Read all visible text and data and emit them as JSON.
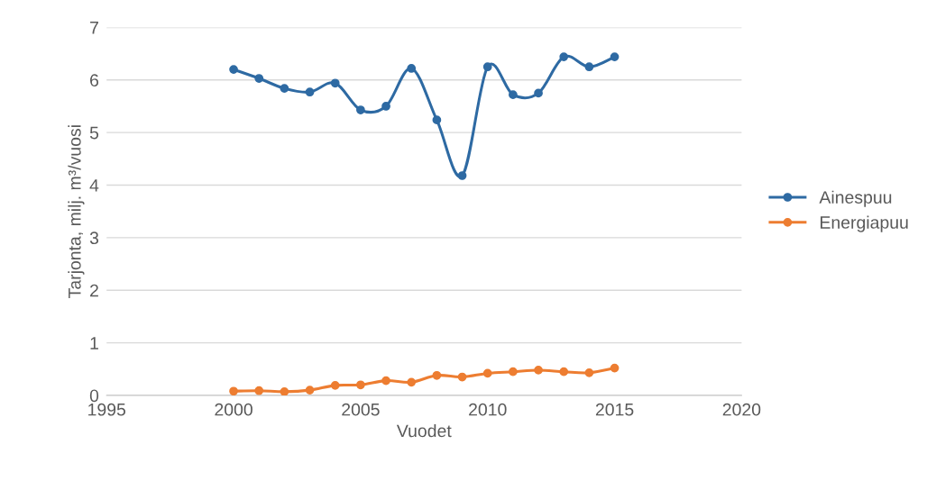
{
  "chart_data": {
    "type": "line",
    "xlabel": "Vuodet",
    "ylabel": "Tarjonta, milj. m³/vuosi",
    "x": [
      2000,
      2001,
      2002,
      2003,
      2004,
      2005,
      2006,
      2007,
      2008,
      2009,
      2010,
      2011,
      2012,
      2013,
      2014,
      2015
    ],
    "series": [
      {
        "name": "Ainespuu",
        "color": "#2e6aa3",
        "values": [
          6.2,
          6.03,
          5.84,
          5.77,
          5.94,
          5.43,
          5.5,
          6.22,
          5.24,
          4.18,
          6.25,
          5.72,
          5.75,
          6.44,
          6.25,
          6.44
        ]
      },
      {
        "name": "Energiapuu",
        "color": "#ed7d31",
        "values": [
          0.08,
          0.09,
          0.07,
          0.1,
          0.19,
          0.2,
          0.28,
          0.25,
          0.38,
          0.35,
          0.42,
          0.45,
          0.48,
          0.45,
          0.43,
          0.52
        ]
      }
    ],
    "xlim": [
      1995,
      2020
    ],
    "xticks": [
      1995,
      2000,
      2005,
      2010,
      2015,
      2020
    ],
    "ylim": [
      0,
      7
    ],
    "yticks": [
      0,
      1,
      2,
      3,
      4,
      5,
      6,
      7
    ],
    "grid": "y",
    "legend": "right",
    "marker": "circle",
    "line_style": "solid"
  }
}
